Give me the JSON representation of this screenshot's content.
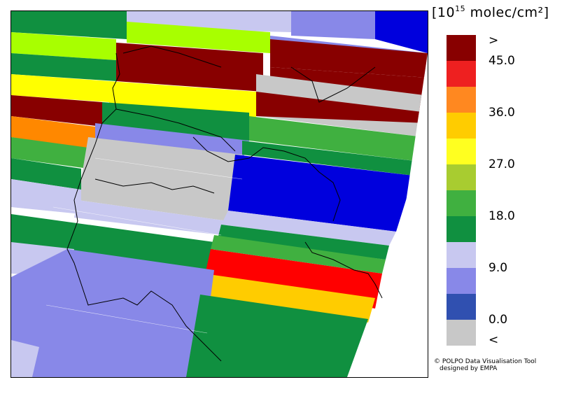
{
  "legend": {
    "title_prefix": "[10",
    "title_exponent": "15",
    "title_suffix": " molec/cm²]",
    "swatches": [
      "#880000",
      "#ee2020",
      "#ff8820",
      "#ffcc00",
      "#ffff20",
      "#a8cc30",
      "#40b040",
      "#109040",
      "#c8c8f0",
      "#8888e8",
      "#3050b0",
      "#c8c8c8"
    ],
    "labels": [
      ">",
      "45.0",
      "36.0",
      "27.0",
      "18.0",
      "9.0",
      "0.0",
      "<"
    ]
  },
  "credit": {
    "line1": "© POLPO Data Visualisation Tool",
    "line2": "designed by EMPA"
  }
}
